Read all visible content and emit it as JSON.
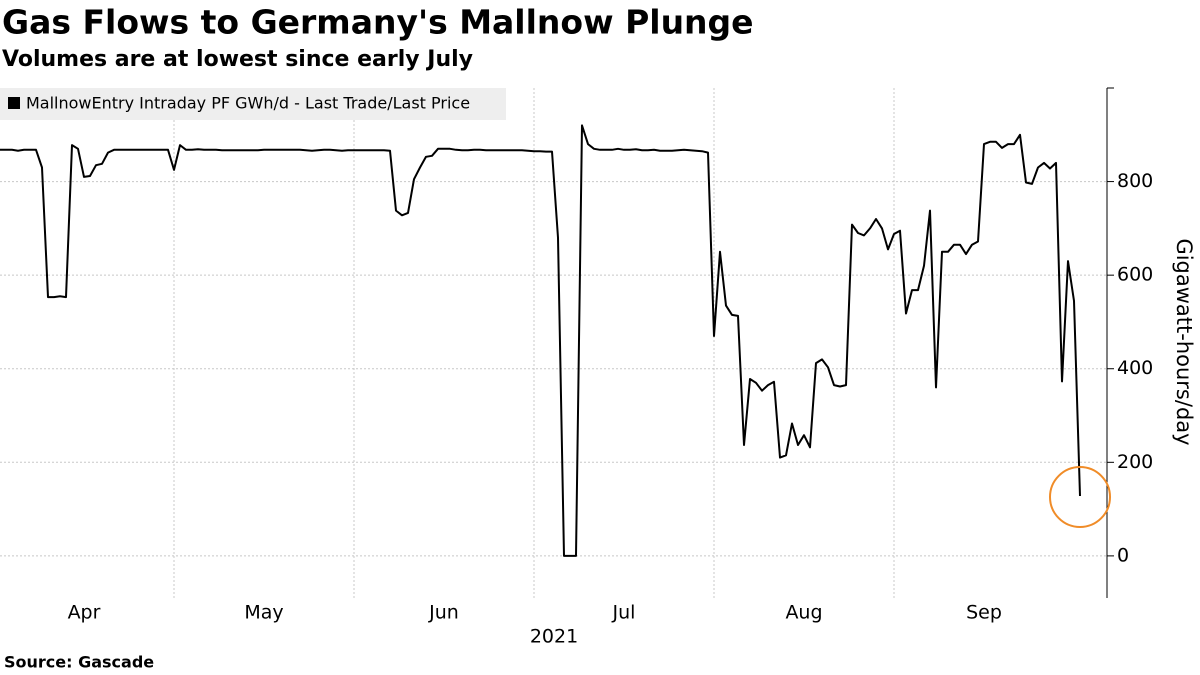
{
  "chart_data": {
    "type": "line",
    "title": "Gas Flows to Germany's Mallnow Plunge",
    "subtitle": "Volumes are at lowest since early July",
    "source": "Source: Gascade",
    "xlabel": "2021",
    "ylabel": "Gigawatt-hours/day",
    "ylim": [
      -90,
      1000
    ],
    "yticks": [
      0,
      200,
      400,
      600,
      800
    ],
    "grid": true,
    "legend": "top-left",
    "categories": [
      null,
      null,
      null,
      null,
      null,
      null,
      null,
      null,
      null,
      null,
      null,
      null,
      null,
      null,
      "Apr",
      null,
      null,
      null,
      null,
      null,
      null,
      null,
      null,
      null,
      null,
      null,
      null,
      null,
      null,
      null,
      null,
      null,
      null,
      null,
      null,
      null,
      null,
      null,
      null,
      null,
      null,
      null,
      null,
      null,
      "May",
      null,
      null,
      null,
      null,
      null,
      null,
      null,
      null,
      null,
      null,
      null,
      null,
      null,
      null,
      null,
      null,
      null,
      null,
      null,
      null,
      null,
      null,
      null,
      null,
      null,
      null,
      null,
      null,
      null,
      "Jun",
      null,
      null,
      null,
      null,
      null,
      null,
      null,
      null,
      null,
      null,
      null,
      null,
      null,
      null,
      null,
      null,
      null,
      null,
      null,
      null,
      null,
      null,
      null,
      null,
      null,
      null,
      null,
      null,
      null,
      "Jul",
      null,
      null,
      null,
      null,
      null,
      null,
      null,
      null,
      null,
      null,
      null,
      null,
      null,
      null,
      null,
      null,
      null,
      null,
      null,
      null,
      null,
      null,
      null,
      null,
      null,
      null,
      null,
      null,
      null,
      "Aug",
      null,
      null,
      null,
      null,
      null,
      null,
      null,
      null,
      null,
      null,
      null,
      null,
      null,
      null,
      null,
      null,
      null,
      null,
      null,
      null,
      null,
      null,
      null,
      null,
      null,
      null,
      null,
      null,
      null,
      "Sep",
      null,
      null,
      null,
      null,
      null,
      null,
      null,
      null,
      null,
      null,
      null,
      null,
      null,
      null,
      null,
      null
    ],
    "series": [
      {
        "name": "MallnowEntry Intraday PF GWh/d - Last Trade/Last Price",
        "color": "#000000",
        "values": [
          868,
          868,
          868,
          866,
          868,
          868,
          868,
          830,
          553,
          553,
          555,
          553,
          878,
          870,
          810,
          812,
          835,
          838,
          862,
          868,
          868,
          868,
          868,
          868,
          868,
          868,
          868,
          868,
          868,
          825,
          878,
          868,
          868,
          869,
          868,
          868,
          868,
          867,
          867,
          867,
          867,
          867,
          867,
          867,
          868,
          868,
          868,
          868,
          868,
          868,
          868,
          867,
          866,
          867,
          868,
          868,
          867,
          866,
          867,
          867,
          867,
          867,
          867,
          867,
          867,
          866,
          738,
          728,
          733,
          805,
          830,
          853,
          855,
          870,
          870,
          870,
          868,
          867,
          867,
          868,
          868,
          867,
          867,
          867,
          867,
          867,
          867,
          867,
          866,
          865,
          865,
          864,
          864,
          680,
          0,
          0,
          0,
          920,
          880,
          870,
          868,
          868,
          868,
          870,
          868,
          868,
          869,
          867,
          867,
          868,
          866,
          866,
          866,
          867,
          868,
          867,
          866,
          865,
          862,
          470,
          650,
          535,
          515,
          513,
          237,
          378,
          370,
          353,
          365,
          372,
          210,
          215,
          283,
          237,
          258,
          232,
          412,
          420,
          403,
          365,
          362,
          365,
          708,
          690,
          685,
          700,
          720,
          700,
          655,
          688,
          695,
          518,
          568,
          568,
          620,
          738,
          360,
          650,
          650,
          665,
          665,
          645,
          665,
          672,
          880,
          885,
          885,
          872,
          880,
          880,
          900,
          798,
          795,
          830,
          840,
          828,
          840,
          373,
          630,
          545,
          128
        ]
      }
    ]
  }
}
